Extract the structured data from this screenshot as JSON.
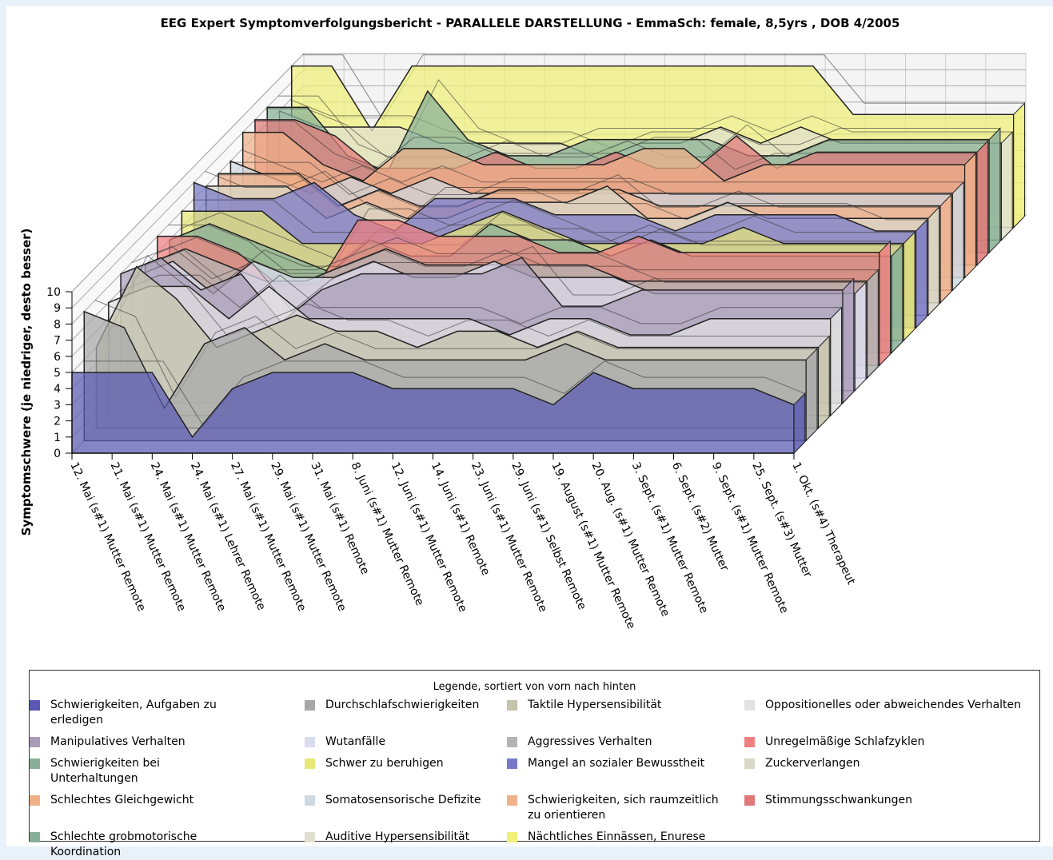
{
  "chart_data": {
    "type": "area3d",
    "title": "EEG Expert Symptomverfolgungsbericht - PARALLELE DARSTELLUNG - EmmaSch: female, 8,5yrs , DOB 4/2005",
    "y_label": "Symptomschwere (je niedriger, desto besser)",
    "legend_title": "Legende, sortiert von vorn nach hinten",
    "categories": [
      "12. Mai (s#1) Mutter Remote",
      "21. Mai (s#1) Mutter Remote",
      "24. Mai (s#1) Mutter Remote",
      "24. Mai (s#1) Lehrer Remote",
      "27. Mai (s#1) Mutter Remote",
      "29. Mai (s#1) Mutter Remote",
      "31. Mai (s#1) Remote",
      "8. Juni (s#1) Mutter Remote",
      "12. Juni (s#1) Mutter Remote",
      "14. Juni (s#1) Remote",
      "23. Juni (s#1) Mutter Remote",
      "29. Juni (s#1) Selbst Remote",
      "19. August (s#1) Mutter Remote",
      "20. Aug. (s#1) Mutter Remote",
      "3. Sept. (s#1) Mutter Remote",
      "6. Sept. (s#2) Mutter",
      "9. Sept. (s#1) Mutter Remote",
      "25. Sept. (s#3) Mutter",
      "1. Okt. (s#4) Therapeut"
    ],
    "ylim": [
      0,
      10
    ],
    "yticks": [
      0,
      1,
      2,
      3,
      4,
      5,
      6,
      7,
      8,
      9,
      10
    ],
    "grid": true,
    "series": [
      {
        "name": "Schwierigkeiten, Aufgaben zu erledigen",
        "color": "#5a5ab4",
        "values": [
          5,
          5,
          5,
          1,
          4,
          5,
          5,
          5,
          4,
          4,
          4,
          4,
          3,
          5,
          4,
          4,
          4,
          4,
          3
        ]
      },
      {
        "name": "Durchschlafschwierigkeiten",
        "color": "#a8a8a8",
        "values": [
          8,
          7,
          2,
          6,
          7,
          5,
          6,
          5,
          5,
          5,
          5,
          5,
          6,
          5,
          5,
          5,
          5,
          5,
          5
        ]
      },
      {
        "name": "Taktile Hypersensibilität",
        "color": "#c4c4ac",
        "values": [
          5,
          10,
          8,
          5,
          6,
          7,
          6,
          6,
          5,
          6,
          6,
          5,
          6,
          5,
          5,
          5,
          5,
          5,
          5
        ]
      },
      {
        "name": "Oppositionelles oder abweichendes Verhalten",
        "color": "#e2e2e2",
        "values": [
          7,
          8,
          8,
          6,
          8,
          6,
          6,
          6,
          6,
          6,
          5,
          6,
          6,
          5,
          5,
          6,
          6,
          6,
          6
        ]
      },
      {
        "name": "Manipulatives Verhalten",
        "color": "#a89cb8",
        "values": [
          8,
          9,
          7,
          8,
          5,
          7,
          8,
          8,
          8,
          8,
          9,
          6,
          6,
          7,
          7,
          7,
          7,
          7,
          7
        ]
      },
      {
        "name": "Wutanfälle",
        "color": "#dcdcf0",
        "values": [
          7,
          8,
          6,
          8,
          7,
          7,
          8,
          7,
          7,
          8,
          7,
          7,
          7,
          6,
          6,
          6,
          6,
          6,
          6
        ]
      },
      {
        "name": "Aggressives Verhalten",
        "color": "#b4b4b4",
        "values": [
          7,
          8,
          7,
          6,
          6,
          7,
          8,
          7,
          7,
          7,
          7,
          7,
          6,
          6,
          6,
          6,
          6,
          6,
          6
        ]
      },
      {
        "name": "Unregelmäßige Schlafzyklen",
        "color": "#ee8080",
        "values": [
          8,
          8,
          7,
          5,
          5,
          9,
          9,
          8,
          8,
          8,
          7,
          7,
          8,
          7,
          7,
          7,
          7,
          7,
          7
        ]
      },
      {
        "name": "Schwierigkeiten bei Unterhaltungen",
        "color": "#88b098",
        "values": [
          7,
          8,
          7,
          6,
          5,
          7,
          6,
          6,
          8,
          7,
          7,
          6,
          7,
          6,
          6,
          6,
          6,
          6,
          6
        ]
      },
      {
        "name": "Schwer zu beruhigen",
        "color": "#e8e878",
        "values": [
          8,
          8,
          8,
          6,
          6,
          6,
          6,
          7,
          8,
          7,
          6,
          6,
          6,
          6,
          7,
          6,
          6,
          6,
          6
        ]
      },
      {
        "name": "Mangel an sozialer Bewusstheit",
        "color": "#7878c8",
        "values": [
          9,
          8,
          8,
          9,
          7,
          6,
          8,
          8,
          8,
          7,
          7,
          7,
          6,
          7,
          7,
          7,
          7,
          6,
          6
        ]
      },
      {
        "name": "Zuckerverlangen",
        "color": "#d8d8c8",
        "values": [
          8,
          8,
          8,
          6,
          7,
          6,
          6,
          7,
          7,
          7,
          8,
          6,
          6,
          7,
          6,
          6,
          6,
          6,
          6
        ]
      },
      {
        "name": "Schlechtes Gleichgewicht",
        "color": "#f0b088",
        "values": [
          8,
          8,
          8,
          6,
          7,
          6,
          6,
          7,
          7,
          7,
          7,
          6,
          6,
          6,
          6,
          6,
          6,
          6,
          6
        ]
      },
      {
        "name": "Somatosensorische Defizite",
        "color": "#d0d8e0",
        "values": [
          8,
          7,
          6,
          7,
          6,
          7,
          6,
          6,
          6,
          6,
          6,
          6,
          6,
          6,
          6,
          6,
          6,
          6,
          6
        ]
      },
      {
        "name": "Schwierigkeiten, sich raumzeitlich zu orientieren",
        "color": "#f0b088",
        "values": [
          9,
          9,
          7,
          6,
          8,
          8,
          7,
          7,
          7,
          7,
          8,
          8,
          6,
          7,
          7,
          7,
          7,
          7,
          7
        ]
      },
      {
        "name": "Stimmungsschwankungen",
        "color": "#e07878",
        "values": [
          9,
          9,
          8,
          6,
          6,
          6,
          7,
          6,
          6,
          7,
          6,
          6,
          8,
          6,
          7,
          7,
          7,
          7,
          7
        ]
      },
      {
        "name": "Schlechte grobmotorische Koordination",
        "color": "#88b098",
        "values": [
          9,
          9,
          6,
          5,
          10,
          7,
          6,
          6,
          7,
          7,
          7,
          7,
          6,
          6,
          7,
          7,
          7,
          7,
          7
        ]
      },
      {
        "name": "Auditive Hypersensibilität",
        "color": "#e0e0d0",
        "values": [
          8,
          7,
          7,
          7,
          6,
          6,
          6,
          6,
          5,
          6,
          6,
          7,
          6,
          7,
          6,
          6,
          6,
          6,
          6
        ]
      },
      {
        "name": "Nächtliches Einnässen, Enurese",
        "color": "#f0f078",
        "values": [
          10,
          10,
          6,
          10,
          10,
          10,
          10,
          10,
          10,
          10,
          10,
          10,
          10,
          10,
          7,
          7,
          7,
          7,
          7
        ]
      }
    ]
  }
}
